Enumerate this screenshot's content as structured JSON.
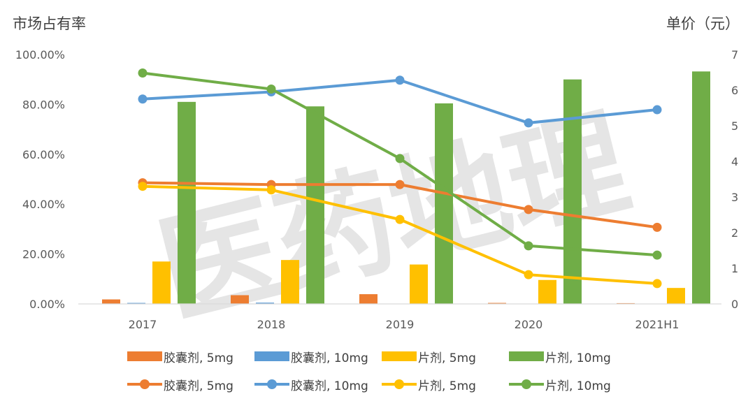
{
  "chart_data": {
    "type": "bar+line",
    "title": "",
    "y_left_label": "市场占有率",
    "y_right_label": "单价（元）",
    "categories": [
      "2017",
      "2018",
      "2019",
      "2020",
      "2021H1"
    ],
    "y_left": {
      "min": 0,
      "max": 100,
      "ticks": [
        "0.00%",
        "20.00%",
        "40.00%",
        "60.00%",
        "80.00%",
        "100.00%"
      ]
    },
    "y_right": {
      "min": 0,
      "max": 7,
      "ticks": [
        "0",
        "1",
        "2",
        "3",
        "4",
        "5",
        "6",
        "7"
      ]
    },
    "bar_series": [
      {
        "name": "胶囊剂, 5mg",
        "color": "#ED7D31",
        "values": [
          1.8,
          3.5,
          3.9,
          0.4,
          0.3
        ]
      },
      {
        "name": "胶囊剂, 10mg",
        "color": "#5B9BD5",
        "values": [
          0.4,
          0.5,
          0.0,
          0.0,
          0.0
        ]
      },
      {
        "name": "片剂, 5mg",
        "color": "#FFC000",
        "values": [
          17.0,
          17.6,
          15.8,
          9.6,
          6.4
        ]
      },
      {
        "name": "片剂, 10mg",
        "color": "#70AD47",
        "values": [
          81.0,
          79.2,
          80.4,
          90.0,
          93.2
        ]
      }
    ],
    "line_series": [
      {
        "name": "胶囊剂, 5mg",
        "color": "#ED7D31",
        "values": [
          3.4,
          3.35,
          3.35,
          2.65,
          2.15
        ]
      },
      {
        "name": "胶囊剂, 10mg",
        "color": "#5B9BD5",
        "values": [
          5.75,
          5.95,
          6.28,
          5.08,
          5.45
        ]
      },
      {
        "name": "片剂, 5mg",
        "color": "#FFC000",
        "values": [
          3.3,
          3.2,
          2.37,
          0.82,
          0.57
        ]
      },
      {
        "name": "片剂, 10mg",
        "color": "#70AD47",
        "values": [
          6.48,
          6.03,
          4.08,
          1.63,
          1.37
        ]
      }
    ],
    "legend_position": "bottom",
    "grid": false
  },
  "watermark": {
    "text": "医药地理",
    "color": "#d0d0d0"
  }
}
